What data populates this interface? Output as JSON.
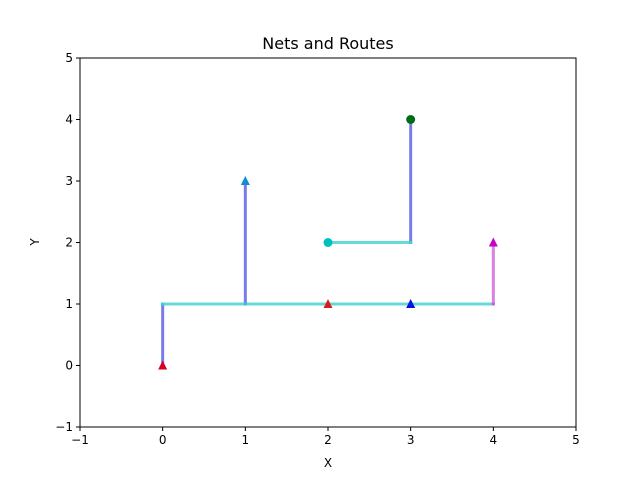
{
  "chart_data": {
    "type": "line",
    "title": "Nets and Routes",
    "xlabel": "X",
    "ylabel": "Y",
    "xlim": [
      -1,
      5
    ],
    "ylim": [
      -1,
      5
    ],
    "xticks": [
      -1,
      0,
      1,
      2,
      3,
      4,
      5
    ],
    "yticks": [
      -1,
      0,
      1,
      2,
      3,
      4,
      5
    ],
    "xtick_labels": [
      "−1",
      "0",
      "1",
      "2",
      "3",
      "4",
      "5"
    ],
    "ytick_labels": [
      "−1",
      "0",
      "1",
      "2",
      "3",
      "4",
      "5"
    ],
    "grid": false,
    "legend": "none",
    "routes": [
      {
        "color": "#5a5ae6",
        "points": [
          [
            0,
            0
          ],
          [
            0,
            1
          ]
        ]
      },
      {
        "color": "#5a5ae6",
        "points": [
          [
            1,
            1
          ],
          [
            1,
            3
          ]
        ]
      },
      {
        "color": "#5a5ae6",
        "points": [
          [
            3,
            2
          ],
          [
            3,
            4
          ]
        ]
      },
      {
        "color": "#40d0d0",
        "points": [
          [
            0,
            1
          ],
          [
            4,
            1
          ]
        ]
      },
      {
        "color": "#40d0d0",
        "points": [
          [
            2,
            2
          ],
          [
            3,
            2
          ]
        ]
      },
      {
        "color": "#d060d8",
        "points": [
          [
            4,
            1
          ],
          [
            4,
            2
          ]
        ]
      }
    ],
    "markers": [
      {
        "x": 0,
        "y": 0,
        "shape": "triangle",
        "color": "#d6002a"
      },
      {
        "x": 1,
        "y": 3,
        "shape": "triangle",
        "color": "#0a8fd8"
      },
      {
        "x": 2,
        "y": 1,
        "shape": "triangle",
        "color": "#d62020"
      },
      {
        "x": 3,
        "y": 1,
        "shape": "triangle",
        "color": "#0a10e0"
      },
      {
        "x": 4,
        "y": 2,
        "shape": "triangle",
        "color": "#c800c8"
      },
      {
        "x": 2,
        "y": 2,
        "shape": "circle",
        "color": "#00bfbf"
      },
      {
        "x": 3,
        "y": 4,
        "shape": "circle",
        "color": "#006b16"
      }
    ]
  }
}
